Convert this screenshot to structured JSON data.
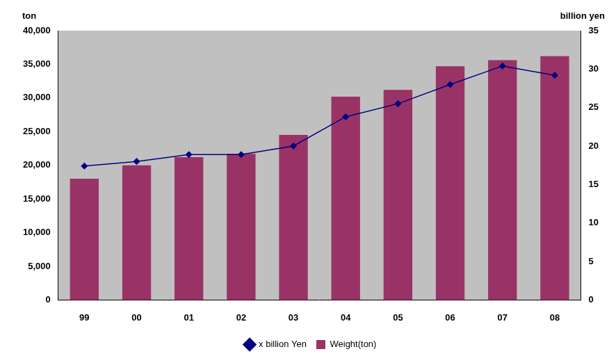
{
  "chart_data": {
    "type": "bar",
    "categories": [
      "99",
      "00",
      "01",
      "02",
      "03",
      "04",
      "05",
      "06",
      "07",
      "08"
    ],
    "series": [
      {
        "name": "Weight(ton)",
        "type": "bar",
        "color": "#993366",
        "values": [
          18000,
          20000,
          21200,
          21700,
          24500,
          30200,
          31200,
          34700,
          35600,
          36200
        ]
      },
      {
        "name": "x billion Yen",
        "type": "line",
        "color": "#000080",
        "marker": "diamond",
        "axis": "y2",
        "values": [
          17.4,
          18,
          18.9,
          18.9,
          20,
          23.8,
          25.5,
          28,
          30.4,
          29.2
        ]
      }
    ],
    "ylabel": "ton",
    "y2label": "billion yen",
    "ylim": [
      0,
      40000
    ],
    "yticks": [
      0,
      {
        "value": 5000,
        "label": "5,000"
      },
      {
        "value": 10000,
        "label": "10,000"
      },
      {
        "value": 15000,
        "label": "15,000"
      },
      {
        "value": 20000,
        "label": "20,000"
      },
      {
        "value": 25000,
        "label": "25,000"
      },
      {
        "value": 30000,
        "label": "30,000"
      },
      {
        "value": 35000,
        "label": "35,000"
      },
      {
        "value": 40000,
        "label": "40,000"
      }
    ],
    "y2lim": [
      0,
      35
    ],
    "y2ticks": [
      0,
      5,
      10,
      15,
      20,
      25,
      30,
      35
    ],
    "grid": false,
    "legend": "bottom"
  }
}
